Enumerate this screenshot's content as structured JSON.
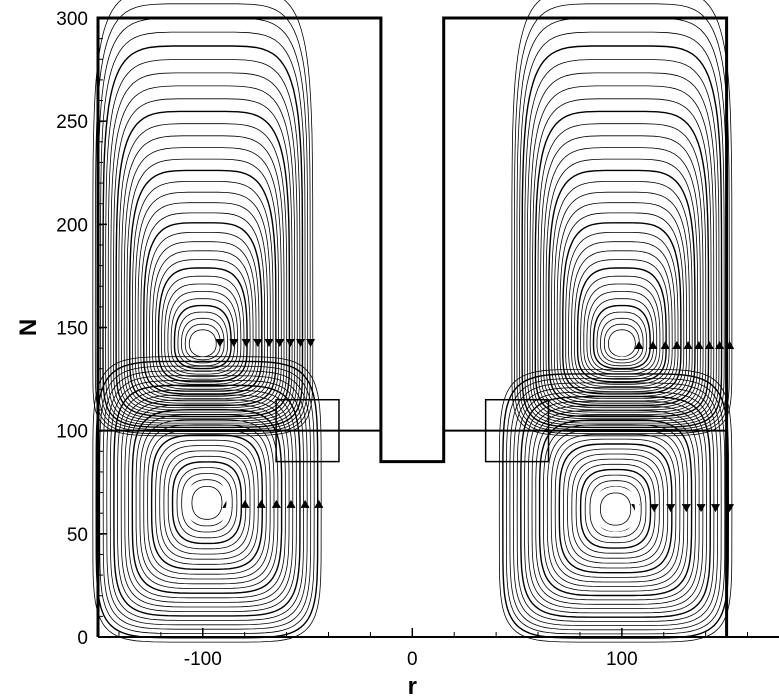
{
  "chart_data": {
    "type": "streamline",
    "xlabel": "r",
    "ylabel": "N",
    "xlim": [
      -150,
      175
    ],
    "ylim": [
      0,
      300
    ],
    "x_ticks": [
      -100,
      0,
      100
    ],
    "y_ticks": [
      0,
      50,
      100,
      150,
      200,
      250,
      300
    ],
    "x_tick_labels": [
      "-100",
      "0",
      "100"
    ],
    "y_tick_labels": [
      "0",
      "50",
      "100",
      "150",
      "200",
      "250",
      "300"
    ],
    "grid": false,
    "domain_boundary": [
      [
        -150,
        0
      ],
      [
        -150,
        300
      ],
      [
        -15,
        300
      ],
      [
        -15,
        85
      ],
      [
        15,
        85
      ],
      [
        15,
        300
      ],
      [
        150,
        300
      ],
      [
        150,
        0
      ]
    ],
    "interface_level": 100,
    "vortices": [
      {
        "name": "upper-left",
        "center": [
          -100,
          142
        ],
        "bounds": [
          [
            -150,
            100
          ],
          [
            -15,
            300
          ]
        ],
        "direction": "ccw"
      },
      {
        "name": "upper-right",
        "center": [
          100,
          142
        ],
        "bounds": [
          [
            15,
            100
          ],
          [
            150,
            300
          ]
        ],
        "direction": "cw"
      },
      {
        "name": "lower-left",
        "center": [
          -98,
          65
        ],
        "bounds": [
          [
            -150,
            0
          ],
          [
            -5,
            100
          ]
        ],
        "direction": "cw"
      },
      {
        "name": "lower-right",
        "center": [
          97,
          62
        ],
        "bounds": [
          [
            5,
            0
          ],
          [
            150,
            100
          ]
        ],
        "direction": "ccw"
      }
    ],
    "zoom_boxes": [
      {
        "x": [
          -65,
          -35
        ],
        "y": [
          85,
          115
        ]
      },
      {
        "x": [
          35,
          65
        ],
        "y": [
          85,
          115
        ]
      }
    ]
  }
}
